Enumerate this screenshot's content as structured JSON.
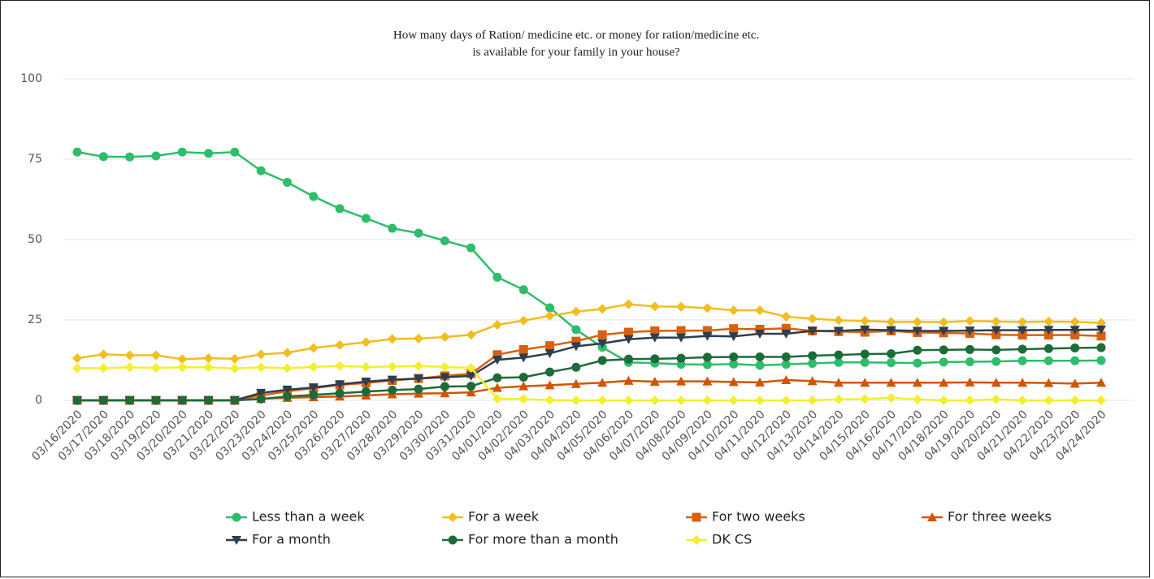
{
  "chart_data": {
    "type": "line",
    "title": [
      "How many days of Ration/ medicine etc. or money for ration/medicine etc.",
      "is available for your family in your house?"
    ],
    "categories": [
      "03/16/2020",
      "03/17/2020",
      "03/18/2020",
      "03/19/2020",
      "03/20/2020",
      "03/21/2020",
      "03/22/2020",
      "03/23/2020",
      "03/24/2020",
      "03/25/2020",
      "03/26/2020",
      "03/27/2020",
      "03/28/2020",
      "03/29/2020",
      "03/30/2020",
      "03/31/2020",
      "04/01/2020",
      "04/02/2020",
      "04/03/2020",
      "04/04/2020",
      "04/05/2020",
      "04/06/2020",
      "04/07/2020",
      "04/08/2020",
      "04/09/2020",
      "04/10/2020",
      "04/11/2020",
      "04/12/2020",
      "04/13/2020",
      "04/14/2020",
      "04/15/2020",
      "04/16/2020",
      "04/17/2020",
      "04/18/2020",
      "04/19/2020",
      "04/20/2020",
      "04/21/2020",
      "04/22/2020",
      "04/23/2020",
      "04/24/2020"
    ],
    "series": [
      {
        "name": "Less than a week",
        "color": "#2ebd6b",
        "marker": "circle",
        "values": [
          77.2,
          75.8,
          75.7,
          76,
          77.2,
          76.8,
          77.2,
          71.4,
          67.8,
          63.4,
          59.6,
          56.6,
          53.5,
          52,
          49.6,
          47.4,
          38.3,
          34.4,
          28.8,
          22,
          16.5,
          11.8,
          11.6,
          11.2,
          11.1,
          11.3,
          10.9,
          11.2,
          11.5,
          11.8,
          11.8,
          11.7,
          11.6,
          11.9,
          12,
          12.1,
          12.3,
          12.3,
          12.3,
          12.4
        ]
      },
      {
        "name": "For a week",
        "color": "#f2bd1d",
        "marker": "diamond",
        "values": [
          13.1,
          14.3,
          14,
          14,
          12.8,
          13.1,
          12.9,
          14.3,
          14.8,
          16.3,
          17.2,
          18.1,
          19.1,
          19.2,
          19.7,
          20.4,
          23.5,
          24.8,
          26.3,
          27.6,
          28.4,
          29.9,
          29.2,
          29.1,
          28.7,
          28,
          28,
          26,
          25.4,
          24.9,
          24.7,
          24.4,
          24.4,
          24.3,
          24.7,
          24.5,
          24.4,
          24.5,
          24.4,
          24.1
        ]
      },
      {
        "name": "For two weeks",
        "color": "#d9600f",
        "marker": "square",
        "values": [
          0,
          0,
          0,
          0,
          0,
          0,
          0,
          1.5,
          2.8,
          3.8,
          4.8,
          5.4,
          6.2,
          6.8,
          7.6,
          8.3,
          14.2,
          15.8,
          17,
          18.4,
          20.4,
          21.2,
          21.6,
          21.7,
          21.7,
          22.3,
          22.1,
          22.4,
          21.6,
          21.4,
          21.2,
          21.6,
          21.1,
          21,
          20.8,
          20.4,
          20.3,
          20.3,
          20.3,
          20
        ]
      },
      {
        "name": "For three weeks",
        "color": "#d35400",
        "marker": "triangle",
        "values": [
          0,
          0,
          0,
          0,
          0,
          0,
          0,
          0.5,
          0.8,
          1,
          1.2,
          1.5,
          1.9,
          2.1,
          2.2,
          2.5,
          3.9,
          4.4,
          4.7,
          5.1,
          5.5,
          6.1,
          5.8,
          5.9,
          5.9,
          5.7,
          5.6,
          6.3,
          6,
          5.5,
          5.5,
          5.5,
          5.5,
          5.5,
          5.6,
          5.5,
          5.5,
          5.4,
          5.2,
          5.5
        ]
      },
      {
        "name": "For a month",
        "color": "#2c3e50",
        "marker": "triangle-down",
        "values": [
          0,
          0,
          0,
          0,
          0,
          0,
          0,
          2.3,
          3.3,
          4,
          5,
          5.8,
          6.4,
          6.8,
          7.2,
          7.6,
          12.6,
          13.3,
          14.6,
          16.8,
          17.7,
          19,
          19.5,
          19.5,
          20,
          19.9,
          20.7,
          20.7,
          21.6,
          21.6,
          22,
          21.8,
          21.6,
          21.6,
          21.7,
          21.8,
          21.8,
          21.9,
          21.9,
          22
        ]
      },
      {
        "name": "For more than a month",
        "color": "#1e6b3a",
        "marker": "circle",
        "values": [
          0,
          0,
          0,
          0,
          0,
          0,
          0,
          0.4,
          1.2,
          1.7,
          2.2,
          2.7,
          3.2,
          3.5,
          4.3,
          4.4,
          7,
          7.2,
          8.8,
          10.3,
          12.4,
          12.8,
          12.9,
          13.1,
          13.4,
          13.5,
          13.5,
          13.5,
          13.9,
          14.1,
          14.4,
          14.5,
          15.6,
          15.7,
          15.8,
          15.7,
          15.9,
          16.1,
          16.3,
          16.4
        ]
      },
      {
        "name": "DK CS",
        "color": "#f3ef2f",
        "marker": "diamond",
        "values": [
          10,
          10,
          10.3,
          10.1,
          10.3,
          10.3,
          9.9,
          10.3,
          10,
          10.4,
          10.7,
          10.4,
          10.5,
          10.7,
          10.4,
          10.1,
          0.5,
          0.4,
          0.1,
          0,
          0,
          0,
          0,
          0,
          0,
          0,
          0,
          0,
          0,
          0.3,
          0.4,
          0.8,
          0.3,
          0,
          0,
          0.3,
          0,
          0,
          0,
          0
        ]
      }
    ],
    "ylim": [
      0,
      100
    ],
    "yticks": [
      0,
      25,
      50,
      75,
      100
    ],
    "grid": true,
    "legend": "bottom"
  }
}
